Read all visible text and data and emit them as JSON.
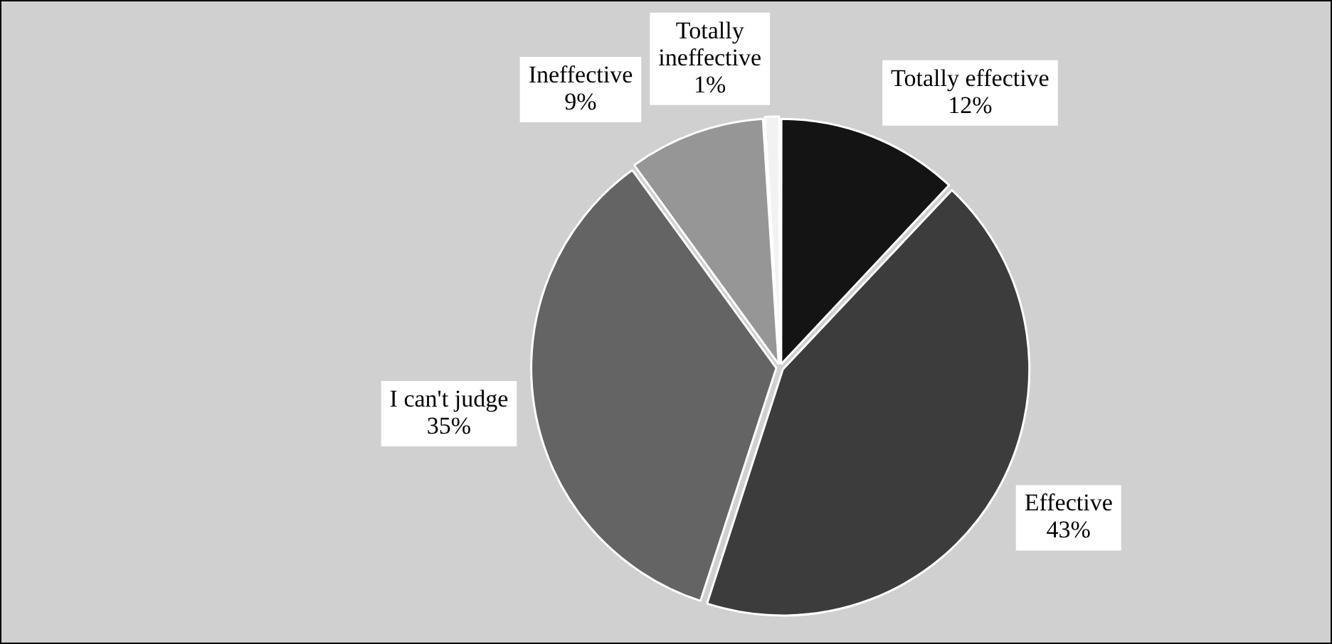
{
  "chart_data": {
    "type": "pie",
    "categories": [
      "Totally effective",
      "Effective",
      "I can't judge",
      "Ineffective",
      "Totally ineffective"
    ],
    "values": [
      12,
      43,
      35,
      9,
      1
    ],
    "value_labels": [
      "12%",
      "43%",
      "35%",
      "9%",
      "1%"
    ],
    "colors": [
      "#141414",
      "#3c3c3c",
      "#646464",
      "#969696",
      "#f2f2f2"
    ],
    "legend": false
  }
}
